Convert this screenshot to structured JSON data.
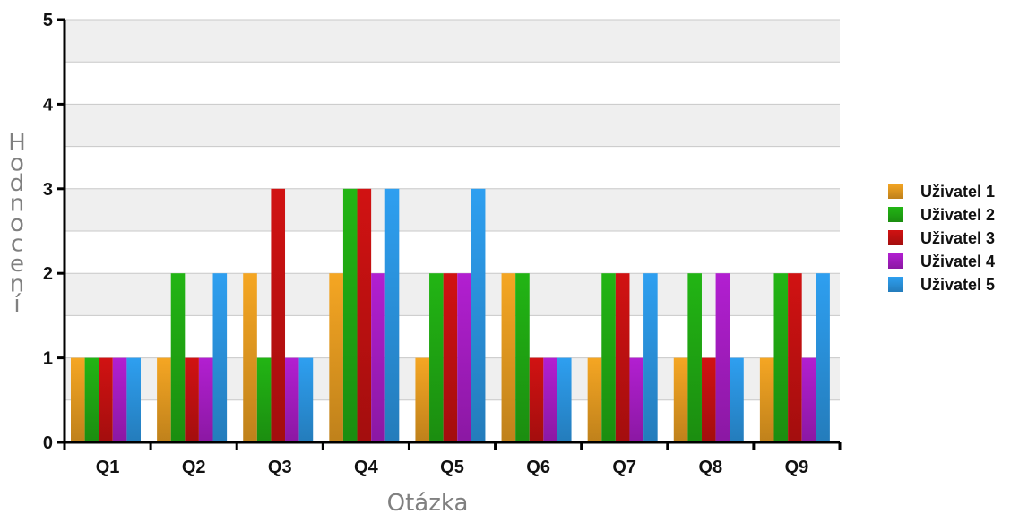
{
  "chart_data": {
    "type": "bar",
    "xlabel": "Otázka",
    "ylabel": "Hodnocení",
    "ylim": [
      0,
      5
    ],
    "yticks": [
      0,
      1,
      2,
      3,
      4,
      5
    ],
    "grid": true,
    "legend_position": "right",
    "categories": [
      "Q1",
      "Q2",
      "Q3",
      "Q4",
      "Q5",
      "Q6",
      "Q7",
      "Q8",
      "Q9"
    ],
    "series": [
      {
        "name": "Uživatel 1",
        "color": "#f5a623",
        "values": [
          1,
          1,
          2,
          2,
          1,
          2,
          1,
          1,
          1
        ]
      },
      {
        "name": "Uživatel 2",
        "color": "#22b514",
        "values": [
          1,
          2,
          1,
          3,
          2,
          2,
          2,
          2,
          2
        ]
      },
      {
        "name": "Uživatel 3",
        "color": "#d11212",
        "values": [
          1,
          1,
          3,
          3,
          2,
          1,
          2,
          1,
          2
        ]
      },
      {
        "name": "Uživatel 4",
        "color": "#b21fd1",
        "values": [
          1,
          1,
          1,
          2,
          2,
          1,
          1,
          2,
          1
        ]
      },
      {
        "name": "Uživatel 5",
        "color": "#2e9ff0",
        "values": [
          1,
          2,
          1,
          3,
          3,
          1,
          2,
          1,
          2
        ]
      }
    ]
  }
}
